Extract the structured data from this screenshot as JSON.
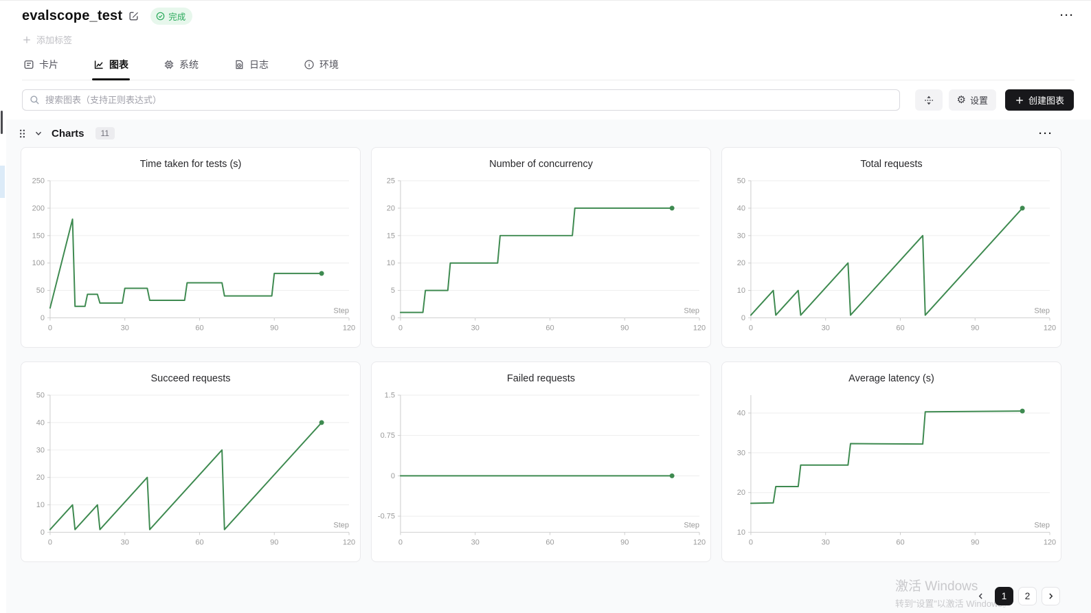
{
  "header": {
    "title": "evalscope_test",
    "status": "完成",
    "add_tag_label": "添加标签",
    "menu_label": "···"
  },
  "tabs": [
    {
      "label": "卡片",
      "icon": "card-icon",
      "active": false
    },
    {
      "label": "图表",
      "icon": "line-chart-icon",
      "active": true
    },
    {
      "label": "系统",
      "icon": "cpu-icon",
      "active": false
    },
    {
      "label": "日志",
      "icon": "log-icon",
      "active": false
    },
    {
      "label": "环境",
      "icon": "info-icon",
      "active": false
    }
  ],
  "toolbar": {
    "search_placeholder": "搜索图表（支持正则表达式）",
    "settings_label": "设置",
    "create_chart_label": "创建图表"
  },
  "charts_section": {
    "title": "Charts",
    "count": "11",
    "menu_label": "···"
  },
  "icons": {
    "search": "magnifier",
    "gear": "⚙",
    "move": "vertical-expand-arrows",
    "plus": "+",
    "edit": "pencil-square",
    "status": "check-circle",
    "drag_handle": "six-dots",
    "chevron_down": "v",
    "chevron_left": "‹",
    "chevron_right": "›"
  },
  "colors": {
    "line_green": "#3e8a50",
    "badge_bg": "#e7f7ec",
    "badge_text": "#27a959",
    "primary_button_bg": "#18181b",
    "panel_bg": "#f9fafb",
    "grid_line": "#ededed",
    "axis_line": "#cccccc",
    "tick_text": "#999999"
  },
  "pagination": {
    "pages": [
      "1",
      "2"
    ],
    "active_page": "1"
  },
  "watermark": {
    "line1": "激活 Windows",
    "line2": "转到“设置”以激活 Windows。"
  },
  "chart_data": [
    {
      "type": "line",
      "title": "Time taken for tests (s)",
      "xlabel": "Step",
      "x": [
        0,
        9,
        10,
        14,
        15,
        19,
        20,
        29,
        30,
        39,
        40,
        54,
        55,
        69,
        70,
        89,
        90,
        109
      ],
      "y": [
        18,
        180,
        21,
        21,
        43,
        43,
        27,
        27,
        54,
        54,
        32,
        32,
        64,
        64,
        40,
        40,
        81,
        81
      ],
      "xticks": [
        0,
        30,
        60,
        90,
        120
      ],
      "yticks": [
        0,
        50,
        100,
        150,
        200,
        250
      ],
      "xlim": [
        0,
        120
      ],
      "ylim": [
        0,
        250
      ],
      "end_dot": true,
      "line_color": "#3e8a50"
    },
    {
      "type": "line",
      "title": "Number of concurrency",
      "xlabel": "Step",
      "x": [
        0,
        9,
        10,
        19,
        20,
        39,
        40,
        69,
        70,
        109
      ],
      "y": [
        1,
        1,
        5,
        5,
        10,
        10,
        15,
        15,
        20,
        20
      ],
      "xticks": [
        0,
        30,
        60,
        90,
        120
      ],
      "yticks": [
        0,
        5,
        10,
        15,
        20,
        25
      ],
      "xlim": [
        0,
        120
      ],
      "ylim": [
        0,
        25
      ],
      "end_dot": true,
      "line_color": "#3e8a50"
    },
    {
      "type": "line",
      "title": "Total requests",
      "xlabel": "Step",
      "x": [
        0,
        9,
        10,
        19,
        20,
        39,
        40,
        69,
        70,
        109
      ],
      "y": [
        1,
        10,
        1,
        10,
        1,
        20,
        1,
        30,
        1,
        40
      ],
      "xticks": [
        0,
        30,
        60,
        90,
        120
      ],
      "yticks": [
        0,
        10,
        20,
        30,
        40,
        50
      ],
      "xlim": [
        0,
        120
      ],
      "ylim": [
        0,
        50
      ],
      "end_dot": true,
      "line_color": "#3e8a50"
    },
    {
      "type": "line",
      "title": "Succeed requests",
      "xlabel": "Step",
      "x": [
        0,
        9,
        10,
        19,
        20,
        39,
        40,
        69,
        70,
        109
      ],
      "y": [
        1,
        10,
        1,
        10,
        1,
        20,
        1,
        30,
        1,
        40
      ],
      "xticks": [
        0,
        30,
        60,
        90,
        120
      ],
      "yticks": [
        0,
        10,
        20,
        30,
        40,
        50
      ],
      "xlim": [
        0,
        120
      ],
      "ylim": [
        0,
        50
      ],
      "end_dot": true,
      "line_color": "#3e8a50"
    },
    {
      "type": "line",
      "title": "Failed requests",
      "xlabel": "Step",
      "x": [
        0,
        109
      ],
      "y": [
        0,
        0
      ],
      "xticks": [
        0,
        30,
        60,
        90,
        120
      ],
      "yticks": [
        -0.75,
        0,
        0.75,
        1.5
      ],
      "xlim": [
        0,
        120
      ],
      "ylim": [
        -1.05,
        1.5
      ],
      "end_dot": true,
      "line_color": "#3e8a50"
    },
    {
      "type": "line",
      "title": "Average latency (s)",
      "xlabel": "Step",
      "x": [
        0,
        9,
        10,
        19,
        20,
        39,
        40,
        69,
        70,
        109
      ],
      "y": [
        17.3,
        17.4,
        21.5,
        21.5,
        26.9,
        26.9,
        32.3,
        32.2,
        40.3,
        40.5
      ],
      "xticks": [
        0,
        30,
        60,
        90,
        120
      ],
      "yticks": [
        10,
        20,
        30,
        40
      ],
      "xlim": [
        0,
        120
      ],
      "ylim": [
        10,
        44.5
      ],
      "end_dot": true,
      "line_color": "#3e8a50"
    }
  ]
}
